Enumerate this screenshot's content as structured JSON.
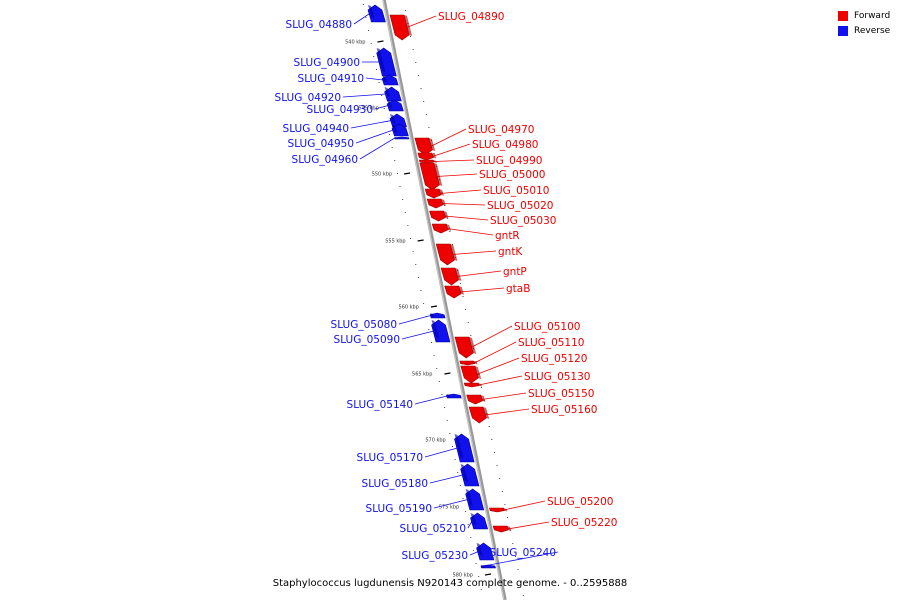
{
  "legend": {
    "forward": {
      "label": "Forward",
      "color": "#ee0000"
    },
    "reverse": {
      "label": "Reverse",
      "color": "#1111ee"
    }
  },
  "caption": "Staphylococcus lugdunensis N920143 complete genome. - 0..2595888",
  "scale_ticks": [
    "540 kbp",
    "545 kbp",
    "550 kbp",
    "555 kbp",
    "560 kbp",
    "565 kbp",
    "570 kbp",
    "575 kbp",
    "580 kbp"
  ],
  "genes": [
    {
      "label": "SLUG_04880",
      "strand": "reverse"
    },
    {
      "label": "SLUG_04890",
      "strand": "forward"
    },
    {
      "label": "SLUG_04900",
      "strand": "reverse"
    },
    {
      "label": "SLUG_04910",
      "strand": "reverse"
    },
    {
      "label": "SLUG_04920",
      "strand": "reverse"
    },
    {
      "label": "SLUG_04930",
      "strand": "reverse"
    },
    {
      "label": "SLUG_04940",
      "strand": "reverse"
    },
    {
      "label": "SLUG_04950",
      "strand": "reverse"
    },
    {
      "label": "SLUG_04960",
      "strand": "reverse"
    },
    {
      "label": "SLUG_04970",
      "strand": "forward"
    },
    {
      "label": "SLUG_04980",
      "strand": "forward"
    },
    {
      "label": "SLUG_04990",
      "strand": "forward"
    },
    {
      "label": "SLUG_05000",
      "strand": "forward"
    },
    {
      "label": "SLUG_05010",
      "strand": "forward"
    },
    {
      "label": "SLUG_05020",
      "strand": "forward"
    },
    {
      "label": "SLUG_05030",
      "strand": "forward"
    },
    {
      "label": "gntR",
      "strand": "forward"
    },
    {
      "label": "gntK",
      "strand": "forward"
    },
    {
      "label": "gntP",
      "strand": "forward"
    },
    {
      "label": "gtaB",
      "strand": "forward"
    },
    {
      "label": "SLUG_05080",
      "strand": "reverse"
    },
    {
      "label": "SLUG_05090",
      "strand": "reverse"
    },
    {
      "label": "SLUG_05100",
      "strand": "forward"
    },
    {
      "label": "SLUG_05110",
      "strand": "forward"
    },
    {
      "label": "SLUG_05120",
      "strand": "forward"
    },
    {
      "label": "SLUG_05130",
      "strand": "forward"
    },
    {
      "label": "SLUG_05140",
      "strand": "reverse"
    },
    {
      "label": "SLUG_05150",
      "strand": "forward"
    },
    {
      "label": "SLUG_05160",
      "strand": "forward"
    },
    {
      "label": "SLUG_05170",
      "strand": "reverse"
    },
    {
      "label": "SLUG_05180",
      "strand": "reverse"
    },
    {
      "label": "SLUG_05190",
      "strand": "reverse"
    },
    {
      "label": "SLUG_05200",
      "strand": "forward"
    },
    {
      "label": "SLUG_05210",
      "strand": "reverse"
    },
    {
      "label": "SLUG_05220",
      "strand": "forward"
    },
    {
      "label": "SLUG_05230",
      "strand": "reverse"
    },
    {
      "label": "SLUG_05240",
      "strand": "reverse"
    }
  ]
}
